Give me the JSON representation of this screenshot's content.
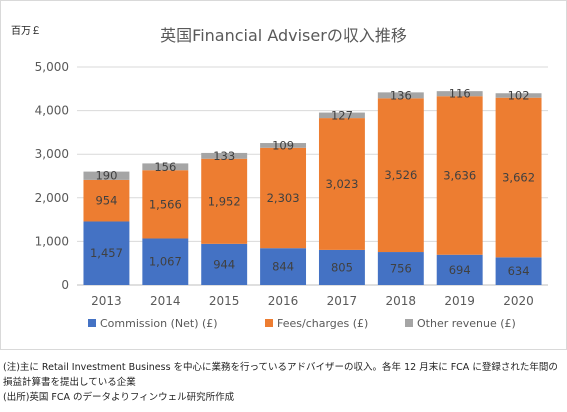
{
  "chart_data": {
    "type": "bar",
    "stacked": true,
    "title": "英国Financial Adviserの収入推移",
    "unit_label": "百万￡",
    "categories": [
      "2013",
      "2014",
      "2015",
      "2016",
      "2017",
      "2018",
      "2019",
      "2020"
    ],
    "ylim": [
      0,
      5000
    ],
    "yticks": [
      "0",
      "1,000",
      "2,000",
      "3,000",
      "4,000",
      "5,000"
    ],
    "ytick_values": [
      0,
      1000,
      2000,
      3000,
      4000,
      5000
    ],
    "grid": true,
    "legend_position": "bottom",
    "series": [
      {
        "name": "Commission (Net) (£)",
        "color": "#4472C4",
        "values": [
          1457,
          1067,
          944,
          844,
          805,
          756,
          694,
          634
        ],
        "labels": [
          "1,457",
          "1,067",
          "944",
          "844",
          "805",
          "756",
          "694",
          "634"
        ]
      },
      {
        "name": "Fees/charges (£)",
        "color": "#ED7D31",
        "values": [
          954,
          1566,
          1952,
          2303,
          3023,
          3526,
          3636,
          3662
        ],
        "labels": [
          "954",
          "1,566",
          "1,952",
          "2,303",
          "3,023",
          "3,526",
          "3,636",
          "3,662"
        ]
      },
      {
        "name": "Other revenue (£)",
        "color": "#A5A5A5",
        "values": [
          190,
          156,
          133,
          109,
          127,
          136,
          116,
          102
        ],
        "labels": [
          "190",
          "156",
          "133",
          "109",
          "127",
          "136",
          "116",
          "102"
        ]
      }
    ]
  },
  "notes": {
    "line1": "(注)主に Retail Investment Business を中心に業務を行っているアドバイザーの収入。各年 12 月末に FCA に登録された年間の",
    "line2": "損益計算書を提出している企業",
    "line3": "(出所)英国 FCA のデータよりフィンウェル研究所作成"
  }
}
